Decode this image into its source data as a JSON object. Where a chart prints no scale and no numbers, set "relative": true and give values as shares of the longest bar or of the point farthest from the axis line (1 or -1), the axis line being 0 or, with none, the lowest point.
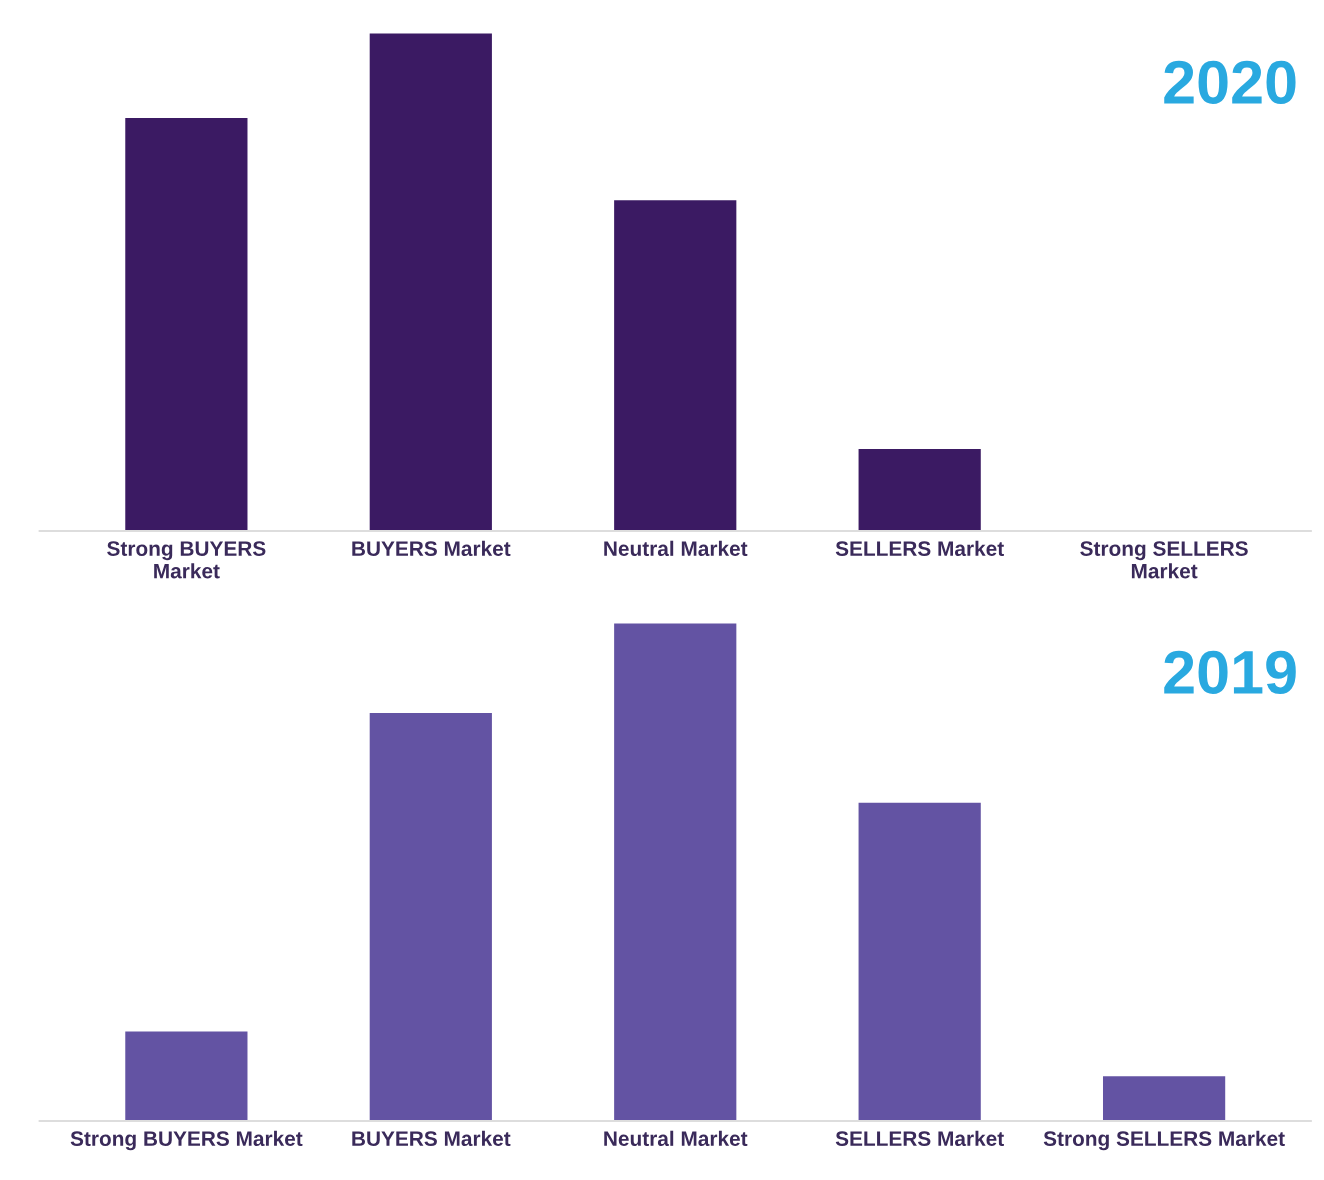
{
  "chart_data": [
    {
      "type": "bar",
      "title": "2020",
      "relative": true,
      "categories": [
        "Strong BUYERS\nMarket",
        "BUYERS Market",
        "Neutral Market",
        "SELLERS Market",
        "Strong SELLERS\nMarket"
      ],
      "series": [
        {
          "color": "#3b1a63",
          "values": [
            0.83,
            1,
            0.665,
            0.165,
            0
          ]
        }
      ],
      "grid": false,
      "legend": false
    },
    {
      "type": "bar",
      "title": "2019",
      "relative": true,
      "categories": [
        "Strong BUYERS Market",
        "BUYERS Market",
        "Neutral Market",
        "SELLERS Market",
        "Strong SELLERS Market"
      ],
      "series": [
        {
          "color": "#6353a3",
          "values": [
            0.18,
            0.82,
            1,
            0.64,
            0.09
          ]
        }
      ],
      "grid": false,
      "legend": false
    }
  ]
}
